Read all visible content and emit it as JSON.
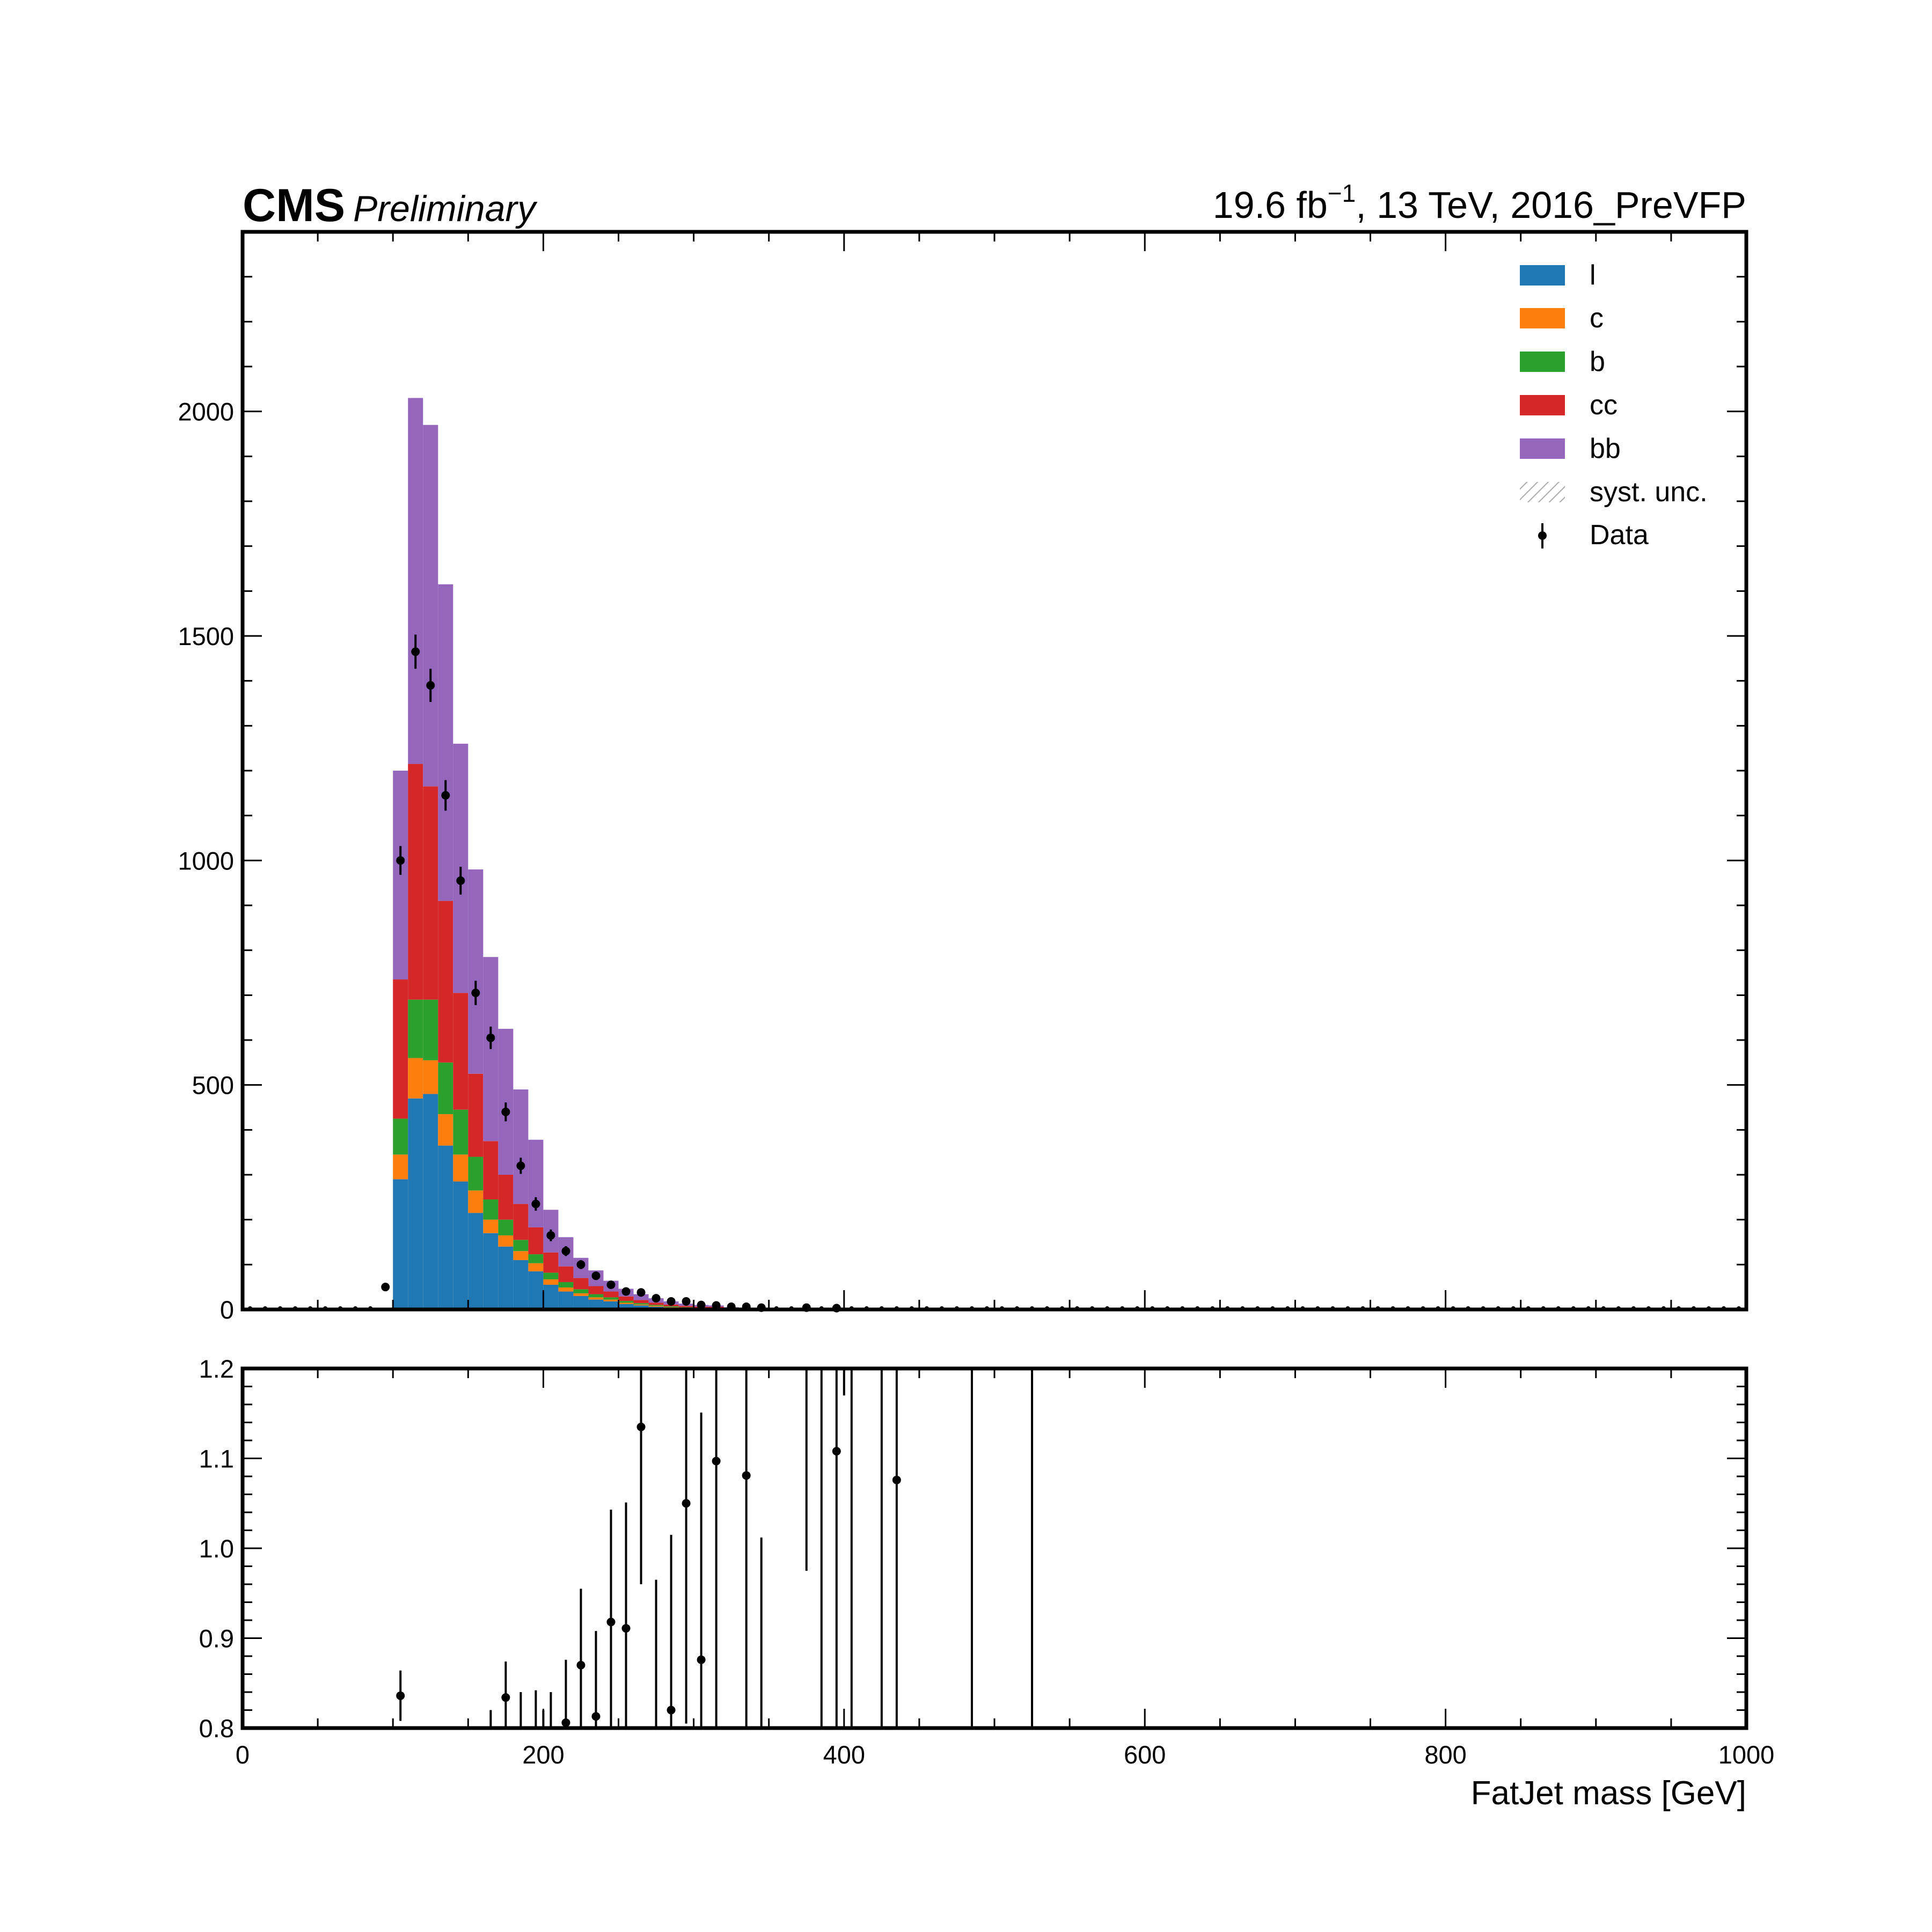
{
  "header": {
    "experiment": "CMS",
    "status": "Preliminary",
    "lumi_prefix": "19.6 fb",
    "lumi_exponent": "−1",
    "lumi_suffix": ", 13 TeV, 2016_PreVFP"
  },
  "colors": {
    "l": "#1f77b4",
    "c": "#ff7f0e",
    "b": "#2ca02c",
    "cc": "#d62728",
    "bb": "#9467bd",
    "data": "#000000",
    "syst": "#aaaaaa"
  },
  "chart_data": [
    {
      "type": "bar",
      "stacked": true,
      "histogram": true,
      "xlabel": "",
      "ylabel": "",
      "xlim": [
        0,
        1000
      ],
      "ylim": [
        0,
        2400
      ],
      "bin_width": 10,
      "xticks": [
        "0",
        "200",
        "400",
        "600",
        "800",
        "1000"
      ],
      "yticks": [
        "0",
        "500",
        "1000",
        "1500",
        "2000"
      ],
      "bin_edges_start": [
        100,
        110,
        120,
        130,
        140,
        150,
        160,
        170,
        180,
        190,
        200,
        210,
        220,
        230,
        240,
        250,
        260,
        270,
        280,
        290,
        300,
        310,
        320,
        330,
        340,
        350
      ],
      "series": [
        {
          "name": "l",
          "color": "#1f77b4",
          "values": [
            290,
            470,
            480,
            365,
            285,
            215,
            170,
            140,
            110,
            85,
            55,
            40,
            30,
            22,
            18,
            12,
            9,
            6,
            4,
            3,
            2,
            2,
            1,
            1,
            1,
            1
          ]
        },
        {
          "name": "c",
          "color": "#ff7f0e",
          "values": [
            55,
            90,
            75,
            70,
            60,
            50,
            30,
            25,
            20,
            18,
            12,
            9,
            6,
            5,
            4,
            3,
            2,
            2,
            1,
            1,
            1,
            1,
            1,
            0,
            0,
            0
          ]
        },
        {
          "name": "b",
          "color": "#2ca02c",
          "values": [
            80,
            130,
            135,
            115,
            100,
            75,
            45,
            35,
            25,
            20,
            15,
            12,
            9,
            7,
            5,
            4,
            3,
            2,
            2,
            1,
            1,
            1,
            0,
            0,
            0,
            0
          ]
        },
        {
          "name": "cc",
          "color": "#d62728",
          "values": [
            310,
            525,
            475,
            360,
            260,
            185,
            130,
            100,
            80,
            60,
            45,
            35,
            25,
            18,
            13,
            10,
            7,
            5,
            4,
            3,
            2,
            2,
            1,
            1,
            1,
            0
          ]
        },
        {
          "name": "bb",
          "color": "#9467bd",
          "values": [
            465,
            815,
            805,
            705,
            555,
            455,
            410,
            325,
            255,
            195,
            95,
            65,
            45,
            35,
            24,
            17,
            13,
            10,
            7,
            5,
            4,
            3,
            2,
            2,
            1,
            1
          ]
        }
      ],
      "data_points": {
        "name": "Data",
        "x": [
          95,
          105,
          115,
          125,
          135,
          145,
          155,
          165,
          175,
          185,
          195,
          205,
          215,
          225,
          235,
          245,
          255,
          265,
          275,
          285,
          295,
          305,
          315,
          325,
          335,
          345,
          375,
          395
        ],
        "y": [
          50,
          1000,
          1465,
          1390,
          1145,
          955,
          705,
          605,
          440,
          320,
          235,
          165,
          130,
          100,
          75,
          55,
          40,
          38,
          25,
          18,
          18,
          10,
          9,
          6,
          6,
          4,
          4,
          3
        ],
        "yerr": [
          7,
          32,
          38,
          37,
          34,
          31,
          27,
          25,
          21,
          18,
          15,
          13,
          11,
          10,
          9,
          7,
          6,
          6,
          5,
          4,
          4,
          3,
          3,
          2,
          2,
          2,
          2,
          2
        ]
      },
      "legend": {
        "placement": "top-right",
        "entries": [
          "l",
          "c",
          "b",
          "cc",
          "bb",
          "syst. unc.",
          "Data"
        ]
      },
      "grid": false
    },
    {
      "type": "scatter",
      "xlabel": "FatJet mass [GeV]",
      "ylabel": "",
      "xlim": [
        0,
        1000
      ],
      "ylim": [
        0.8,
        1.2
      ],
      "yticks": [
        "0.8",
        "0.9",
        "1.0",
        "1.1",
        "1.2"
      ],
      "ratio_points": {
        "x": [
          105,
          175,
          215,
          225,
          235,
          245,
          255,
          265,
          285,
          295,
          305,
          315,
          335,
          395,
          435
        ],
        "y": [
          0.836,
          0.834,
          0.806,
          0.87,
          0.813,
          0.918,
          0.911,
          1.135,
          0.82,
          1.05,
          0.876,
          1.097,
          1.081,
          1.108,
          1.076
        ],
        "yerr": [
          0.028,
          0.04,
          0.07,
          0.085,
          0.095,
          0.125,
          0.14,
          0.175,
          0.195,
          0.245,
          0.275,
          0.32,
          0.345,
          0.445,
          0.54
        ]
      },
      "ratio_error_bars": {
        "x": [
          165,
          185,
          195,
          200,
          205,
          275,
          345,
          375,
          385,
          400,
          405,
          425,
          485,
          525
        ],
        "low": [
          0.8,
          0.8,
          0.8,
          0.8,
          0.8,
          0.8,
          0.8,
          0.975,
          0.8,
          1.17,
          0.8,
          0.8,
          0.8,
          0.8
        ],
        "high": [
          0.82,
          0.84,
          0.842,
          0.82,
          0.84,
          0.965,
          1.012,
          1.2,
          1.2,
          1.2,
          1.2,
          1.2,
          1.2,
          1.2
        ]
      },
      "grid": false
    }
  ]
}
